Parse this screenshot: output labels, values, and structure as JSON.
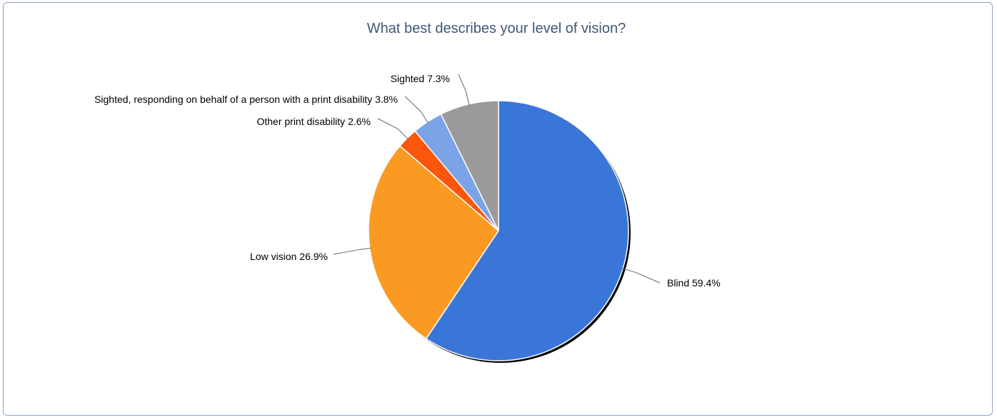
{
  "chart_data": {
    "type": "pie",
    "title": "What best describes your level of vision?",
    "slices": [
      {
        "label": "Blind",
        "percent_text": "59.4%",
        "value": 59.4,
        "color": "#3a76d8"
      },
      {
        "label": "Low vision",
        "percent_text": "26.9%",
        "value": 26.9,
        "color": "#fa9a23"
      },
      {
        "label": "Other print disability",
        "percent_text": "2.6%",
        "value": 2.6,
        "color": "#fb560b"
      },
      {
        "label": "Sighted, responding on behalf of a person with a print disability",
        "percent_text": "3.8%",
        "value": 3.8,
        "color": "#7ba3e8"
      },
      {
        "label": "Sighted",
        "percent_text": "7.3%",
        "value": 7.3,
        "color": "#9a9a9a"
      }
    ]
  }
}
